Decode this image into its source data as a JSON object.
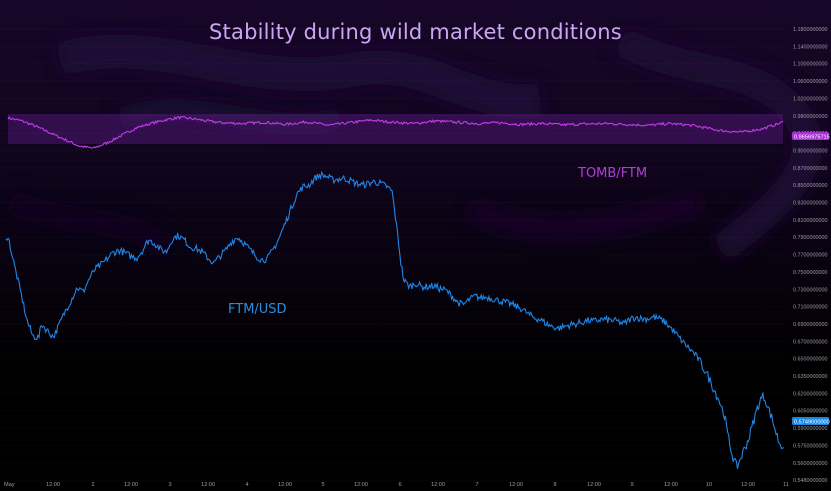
{
  "title": "Stability during wild market conditions",
  "colors": {
    "tomb_line": "#c13de8",
    "ftm_line": "#1e86e6",
    "band": "#5a1a82",
    "axis_text": "#9c9aa6",
    "tomb_badge": "#a830d6",
    "ftm_badge": "#1787e4"
  },
  "chart_data": {
    "type": "line",
    "title": "Stability during wild market conditions",
    "x_ticks": [
      "May",
      "12:00",
      "2",
      "12:00",
      "3",
      "12:00",
      "4",
      "12:00",
      "5",
      "12:00",
      "6",
      "12:00",
      "7",
      "12:00",
      "8",
      "12:00",
      "9",
      "12:00",
      "10",
      "12:00",
      "11"
    ],
    "y_ticks": [
      "1.1800000000",
      "1.1400000000",
      "1.1000000000",
      "1.0600000000",
      "1.0200000000",
      "0.9800000000",
      "0.9400000000",
      "0.9000000000",
      "0.8700000000",
      "0.8500000000",
      "0.8300000000",
      "0.8100000000",
      "0.7900000000",
      "0.7700000000",
      "0.7500000000",
      "0.7300000000",
      "0.7100000000",
      "0.6900000000",
      "0.6700000000",
      "0.6500000000",
      "0.6350000000",
      "0.6200000000",
      "0.6050000000",
      "0.5900000000",
      "0.5750000000",
      "0.5600000000",
      "0.5480000000"
    ],
    "series": [
      {
        "name": "TOMB/FTM",
        "last_value": "0.9656975715",
        "keys": [
          [
            0,
            0.975
          ],
          [
            2,
            0.968
          ],
          [
            4,
            0.955
          ],
          [
            6,
            0.94
          ],
          [
            8,
            0.925
          ],
          [
            10,
            0.91
          ],
          [
            12,
            0.905
          ],
          [
            14,
            0.918
          ],
          [
            16,
            0.935
          ],
          [
            18,
            0.952
          ],
          [
            20,
            0.962
          ],
          [
            22,
            0.97
          ],
          [
            24,
            0.976
          ],
          [
            26,
            0.973
          ],
          [
            28,
            0.968
          ],
          [
            30,
            0.964
          ],
          [
            33,
            0.962
          ],
          [
            36,
            0.965
          ],
          [
            39,
            0.96
          ],
          [
            42,
            0.966
          ],
          [
            45,
            0.958
          ],
          [
            48,
            0.964
          ],
          [
            51,
            0.97
          ],
          [
            54,
            0.965
          ],
          [
            57,
            0.962
          ],
          [
            60,
            0.968
          ],
          [
            63,
            0.965
          ],
          [
            66,
            0.962
          ],
          [
            69,
            0.964
          ],
          [
            72,
            0.96
          ],
          [
            75,
            0.962
          ],
          [
            78,
            0.959
          ],
          [
            81,
            0.961
          ],
          [
            84,
            0.962
          ],
          [
            87,
            0.96
          ],
          [
            90,
            0.958
          ],
          [
            93,
            0.962
          ],
          [
            96,
            0.958
          ],
          [
            100,
            0.946
          ],
          [
            103,
            0.942
          ],
          [
            106,
            0.95
          ],
          [
            109,
            0.966
          ]
        ]
      },
      {
        "name": "FTM/USD",
        "last_value": "0.5749000000",
        "keys": [
          [
            0,
            0.792
          ],
          [
            1,
            0.786
          ],
          [
            3,
            0.755
          ],
          [
            5,
            0.726
          ],
          [
            7,
            0.695
          ],
          [
            9,
            0.676
          ],
          [
            11,
            0.674
          ],
          [
            12,
            0.69
          ],
          [
            14,
            0.682
          ],
          [
            16,
            0.675
          ],
          [
            18,
            0.69
          ],
          [
            20,
            0.705
          ],
          [
            22,
            0.718
          ],
          [
            24,
            0.732
          ],
          [
            26,
            0.727
          ],
          [
            28,
            0.742
          ],
          [
            30,
            0.753
          ],
          [
            32,
            0.758
          ],
          [
            34,
            0.765
          ],
          [
            36,
            0.772
          ],
          [
            38,
            0.775
          ],
          [
            40,
            0.772
          ],
          [
            42,
            0.768
          ],
          [
            44,
            0.766
          ],
          [
            46,
            0.775
          ],
          [
            48,
            0.787
          ],
          [
            50,
            0.783
          ],
          [
            52,
            0.776
          ],
          [
            54,
            0.773
          ],
          [
            56,
            0.788
          ],
          [
            58,
            0.792
          ],
          [
            60,
            0.787
          ],
          [
            62,
            0.779
          ],
          [
            64,
            0.777
          ],
          [
            66,
            0.773
          ],
          [
            68,
            0.766
          ],
          [
            70,
            0.76
          ],
          [
            72,
            0.768
          ],
          [
            74,
            0.775
          ],
          [
            76,
            0.785
          ],
          [
            78,
            0.79
          ],
          [
            80,
            0.784
          ],
          [
            82,
            0.776
          ],
          [
            84,
            0.769
          ],
          [
            86,
            0.764
          ],
          [
            88,
            0.765
          ],
          [
            90,
            0.776
          ],
          [
            92,
            0.789
          ],
          [
            94,
            0.806
          ],
          [
            96,
            0.823
          ],
          [
            98,
            0.84
          ],
          [
            100,
            0.848
          ],
          [
            102,
            0.85
          ],
          [
            104,
            0.858
          ],
          [
            106,
            0.862
          ],
          [
            108,
            0.86
          ],
          [
            110,
            0.856
          ],
          [
            112,
            0.857
          ],
          [
            114,
            0.858
          ],
          [
            116,
            0.855
          ],
          [
            118,
            0.852
          ],
          [
            120,
            0.85
          ],
          [
            122,
            0.852
          ],
          [
            124,
            0.854
          ],
          [
            126,
            0.852
          ],
          [
            128,
            0.849
          ],
          [
            130,
            0.843
          ],
          [
            132,
            0.79
          ],
          [
            133,
            0.76
          ],
          [
            134,
            0.74
          ],
          [
            136,
            0.733
          ],
          [
            138,
            0.737
          ],
          [
            140,
            0.733
          ],
          [
            142,
            0.733
          ],
          [
            144,
            0.734
          ],
          [
            146,
            0.731
          ],
          [
            148,
            0.729
          ],
          [
            150,
            0.723
          ],
          [
            152,
            0.715
          ],
          [
            154,
            0.712
          ],
          [
            156,
            0.718
          ],
          [
            158,
            0.722
          ],
          [
            160,
            0.72
          ],
          [
            162,
            0.721
          ],
          [
            164,
            0.719
          ],
          [
            166,
            0.717
          ],
          [
            168,
            0.715
          ],
          [
            170,
            0.713
          ],
          [
            172,
            0.71
          ],
          [
            174,
            0.707
          ],
          [
            176,
            0.701
          ],
          [
            178,
            0.697
          ],
          [
            180,
            0.695
          ],
          [
            182,
            0.69
          ],
          [
            184,
            0.687
          ],
          [
            186,
            0.685
          ],
          [
            188,
            0.687
          ],
          [
            190,
            0.689
          ],
          [
            192,
            0.69
          ],
          [
            194,
            0.692
          ],
          [
            196,
            0.694
          ],
          [
            198,
            0.693
          ],
          [
            200,
            0.695
          ],
          [
            202,
            0.695
          ],
          [
            204,
            0.694
          ],
          [
            206,
            0.693
          ],
          [
            208,
            0.69
          ],
          [
            210,
            0.695
          ],
          [
            212,
            0.698
          ],
          [
            214,
            0.696
          ],
          [
            216,
            0.696
          ],
          [
            218,
            0.698
          ],
          [
            220,
            0.696
          ],
          [
            222,
            0.692
          ],
          [
            224,
            0.685
          ],
          [
            226,
            0.677
          ],
          [
            228,
            0.669
          ],
          [
            230,
            0.662
          ],
          [
            232,
            0.655
          ],
          [
            234,
            0.646
          ],
          [
            236,
            0.637
          ],
          [
            238,
            0.626
          ],
          [
            240,
            0.615
          ],
          [
            242,
            0.601
          ],
          [
            243,
            0.585
          ],
          [
            244,
            0.573
          ],
          [
            245,
            0.563
          ],
          [
            246,
            0.557
          ],
          [
            247,
            0.561
          ],
          [
            248,
            0.568
          ],
          [
            249,
            0.574
          ],
          [
            250,
            0.58
          ],
          [
            251,
            0.589
          ],
          [
            252,
            0.598
          ],
          [
            253,
            0.607
          ],
          [
            254,
            0.614
          ],
          [
            255,
            0.618
          ],
          [
            256,
            0.613
          ],
          [
            257,
            0.605
          ],
          [
            258,
            0.598
          ],
          [
            259,
            0.589
          ],
          [
            260,
            0.58
          ],
          [
            261,
            0.575
          ],
          [
            262,
            0.575
          ]
        ]
      }
    ]
  }
}
